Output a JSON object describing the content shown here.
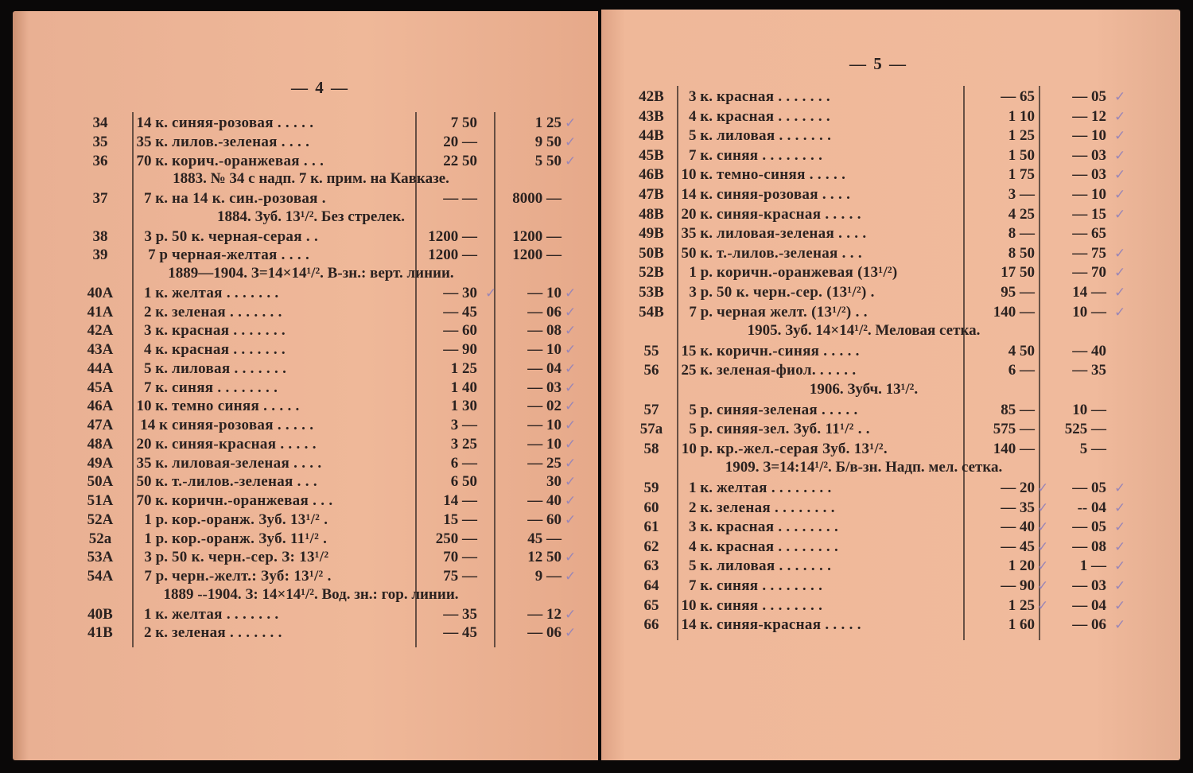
{
  "left_page": {
    "page_number": "— 4 —",
    "rows": [
      {
        "n": "34",
        "d": "14 к.",
        "t": "синяя-розовая . . . . .",
        "p1": "7 50",
        "p2": "1 25",
        "c2": true
      },
      {
        "n": "35",
        "d": "35 к.",
        "t": "лилов.-зеленая . . . .",
        "p1": "20 —",
        "p2": "9 50",
        "c2": true
      },
      {
        "n": "36",
        "d": "70 к.",
        "t": "корич.-оранжевая . . .",
        "p1": "22 50",
        "p2": "5 50",
        "c2": true
      },
      {
        "h": "1883. № 34 с надп. 7 к. прим. на Кавказе."
      },
      {
        "n": "37",
        "d": "7 к.",
        "t": "на 14 к. син.-розовая .",
        "p1": "— —",
        "p2": "8000 —"
      },
      {
        "h": "1884. Зуб. 13¹/². Без стрелек."
      },
      {
        "n": "38",
        "d": "3 р.",
        "t": "50 к. черная-серая . .",
        "p1": "1200 —",
        "p2": "1200 —"
      },
      {
        "n": "39",
        "d": "7 р",
        "t": "черная-желтая . . . .",
        "p1": "1200 —",
        "p2": "1200 —"
      },
      {
        "h": "1889—1904. З=14×14¹/². В-зн.: верт. линии."
      },
      {
        "n": "40A",
        "d": "1 к.",
        "t": "желтая . . . . . . .",
        "p1": "— 30",
        "p2": "— 10",
        "c1": true,
        "c2": true
      },
      {
        "n": "41A",
        "d": "2 к.",
        "t": "зеленая . . . . . . .",
        "p1": "— 45",
        "p2": "— 06",
        "c2": true
      },
      {
        "n": "42A",
        "d": "3 к.",
        "t": "красная . . . . . . .",
        "p1": "— 60",
        "p2": "— 08",
        "c2": true
      },
      {
        "n": "43A",
        "d": "4 к.",
        "t": "красная . . . . . . .",
        "p1": "— 90",
        "p2": "— 10",
        "c2": true
      },
      {
        "n": "44A",
        "d": "5 к.",
        "t": "лиловая . . . . . . .",
        "p1": "1 25",
        "p2": "— 04",
        "c2": true
      },
      {
        "n": "45A",
        "d": "7 к.",
        "t": "синяя . . . . . . . .",
        "p1": "1 40",
        "p2": "— 03",
        "c2": true
      },
      {
        "n": "46A",
        "d": "10 к.",
        "t": "темно синяя . . . . .",
        "p1": "1 30",
        "p2": "— 02",
        "c2": true
      },
      {
        "n": "47A",
        "d": "14 к",
        "t": "синяя-розовая . . . . .",
        "p1": "3 —",
        "p2": "— 10",
        "c2": true
      },
      {
        "n": "48A",
        "d": "20 к.",
        "t": "синяя-красная . . . . .",
        "p1": "3 25",
        "p2": "— 10",
        "c2": true
      },
      {
        "n": "49A",
        "d": "35 к.",
        "t": "лиловая-зеленая . . . .",
        "p1": "6 —",
        "p2": "— 25",
        "c2": true
      },
      {
        "n": "50A",
        "d": "50 к.",
        "t": "т.-лилов.-зеленая . . .",
        "p1": "6 50",
        "p2": "30",
        "c2": true
      },
      {
        "n": "51A",
        "d": "70 к.",
        "t": "коричн.-оранжевая . . .",
        "p1": "14 —",
        "p2": "— 40",
        "c2": true
      },
      {
        "n": "52A",
        "d": "1 р.",
        "t": "кор.-оранж. Зуб. 13¹/² .",
        "p1": "15 —",
        "p2": "— 60",
        "c2": true
      },
      {
        "n": "52a",
        "d": "1 р.",
        "t": "кор.-оранж. Зуб. 11¹/² .",
        "p1": "250 —",
        "p2": "45 —"
      },
      {
        "n": "53A",
        "d": "3 р.",
        "t": "50 к. черн.-сер. З: 13¹/²",
        "p1": "70 —",
        "p2": "12 50",
        "c2": true
      },
      {
        "n": "54A",
        "d": "7 р.",
        "t": "черн.-желт.: Зуб: 13¹/² .",
        "p1": "75 —",
        "p2": "9 —",
        "c2": true
      },
      {
        "h": "1889 --1904. З: 14×14¹/². Вод. зн.: гор. линии."
      },
      {
        "n": "40B",
        "d": "1 к.",
        "t": "желтая . . . . . . .",
        "p1": "— 35",
        "p2": "— 12",
        "c2": true
      },
      {
        "n": "41B",
        "d": "2 к.",
        "t": "зеленая . . . . . . .",
        "p1": "— 45",
        "p2": "— 06",
        "c2": true
      }
    ]
  },
  "right_page": {
    "page_number": "— 5 —",
    "rows": [
      {
        "n": "42B",
        "d": "3 к.",
        "t": "красная . . . . . . .",
        "p1": "— 65",
        "p2": "— 05",
        "c2": true
      },
      {
        "n": "43B",
        "d": "4 к.",
        "t": "красная . . . . . . .",
        "p1": "1 10",
        "p2": "— 12",
        "c2": true
      },
      {
        "n": "44B",
        "d": "5 к.",
        "t": "лиловая . . . . . . .",
        "p1": "1 25",
        "p2": "— 10",
        "c2": true
      },
      {
        "n": "45B",
        "d": "7 к.",
        "t": "синяя . . . . . . . .",
        "p1": "1 50",
        "p2": "— 03",
        "c2": true
      },
      {
        "n": "46B",
        "d": "10 к.",
        "t": "темно-синяя . . . . .",
        "p1": "1 75",
        "p2": "— 03",
        "c2": true
      },
      {
        "n": "47B",
        "d": "14 к.",
        "t": "синяя-розовая . . . .",
        "p1": "3 —",
        "p2": "— 10",
        "c2": true
      },
      {
        "n": "48B",
        "d": "20 к.",
        "t": "синяя-красная . . . . .",
        "p1": "4 25",
        "p2": "— 15",
        "c2": true
      },
      {
        "n": "49B",
        "d": "35 к.",
        "t": "лиловая-зеленая . . . .",
        "p1": "8 —",
        "p2": "— 65"
      },
      {
        "n": "50B",
        "d": "50 к.",
        "t": "т.-лилов.-зеленая . . .",
        "p1": "8 50",
        "p2": "— 75",
        "c2": true
      },
      {
        "n": "52B",
        "d": "1 р.",
        "t": "коричн.-оранжевая (13¹/²)",
        "p1": "17 50",
        "p2": "— 70",
        "c2": true
      },
      {
        "n": "53B",
        "d": "3 р.",
        "t": "50 к. черн.-сер. (13¹/²) .",
        "p1": "95 —",
        "p2": "14 —",
        "c2": true
      },
      {
        "n": "54B",
        "d": "7 р.",
        "t": "черная желт. (13¹/²) . .",
        "p1": "140 —",
        "p2": "10 —",
        "c2": true
      },
      {
        "h": "1905. Зуб. 14×14¹/². Меловая сетка."
      },
      {
        "n": "55",
        "d": "15 к.",
        "t": "коричн.-синяя . . . . .",
        "p1": "4 50",
        "p2": "— 40"
      },
      {
        "n": "56",
        "d": "25 к.",
        "t": "зеленая-фиол. . . . . .",
        "p1": "6 —",
        "p2": "— 35"
      },
      {
        "h": "1906. Зубч. 13¹/²."
      },
      {
        "n": "57",
        "d": "5 р.",
        "t": "синяя-зеленая . . . . .",
        "p1": "85 —",
        "p2": "10 —"
      },
      {
        "n": "57a",
        "d": "5 р.",
        "t": "синяя-зел. Зуб. 11¹/² . .",
        "p1": "575 —",
        "p2": "525 —"
      },
      {
        "n": "58",
        "d": "10 р.",
        "t": "кр.-жел.-серая Зуб. 13¹/².",
        "p1": "140 —",
        "p2": "5 —"
      },
      {
        "h": "1909. З=14:14¹/². Б/в-зн. Надп. мел. сетка."
      },
      {
        "n": "59",
        "d": "1 к.",
        "t": "желтая . . . . . . . .",
        "p1": "— 20",
        "p2": "— 05",
        "c1": true,
        "c2": true
      },
      {
        "n": "60",
        "d": "2 к.",
        "t": "зеленая . . . . . . . .",
        "p1": "— 35",
        "p2": "-- 04",
        "c1": true,
        "c2": true
      },
      {
        "n": "61",
        "d": "3 к.",
        "t": "красная . . . . . . . .",
        "p1": "— 40",
        "p2": "— 05",
        "c1": true,
        "c2": true
      },
      {
        "n": "62",
        "d": "4 к.",
        "t": "красная . . . . . . . .",
        "p1": "— 45",
        "p2": "— 08",
        "c1": true,
        "c2": true
      },
      {
        "n": "63",
        "d": "5 к.",
        "t": "лиловая . . . . . . .",
        "p1": "1 20",
        "p2": "1 —",
        "c1": true,
        "c2": true
      },
      {
        "n": "64",
        "d": "7 к.",
        "t": "синяя . . . . . . . .",
        "p1": "— 90",
        "p2": "— 03",
        "c1": true,
        "c2": true
      },
      {
        "n": "65",
        "d": "10 к.",
        "t": "синяя . . . . . . . .",
        "p1": "1 25",
        "p2": "— 04",
        "c1": true,
        "c2": true
      },
      {
        "n": "66",
        "d": "14 к.",
        "t": "синяя-красная . . . . .",
        "p1": "1 60",
        "p2": "— 06",
        "c2": true
      }
    ]
  },
  "colors": {
    "paper": "#eeb597",
    "ink": "#2b2220",
    "check_mark": "#9a86b6"
  },
  "check_mark_glyph": "✓"
}
